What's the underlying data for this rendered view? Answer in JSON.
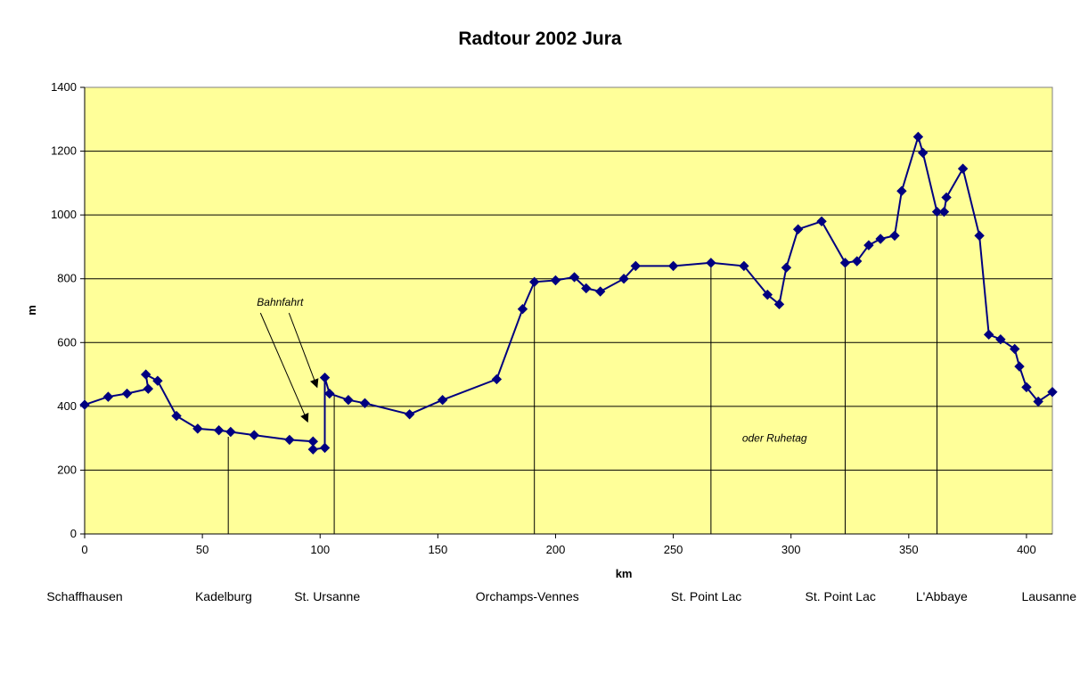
{
  "chart_data": {
    "type": "line",
    "title": "Radtour 2002 Jura",
    "xlabel": "km",
    "ylabel": "m",
    "xlim": [
      0,
      411
    ],
    "ylim": [
      0,
      1400
    ],
    "x_ticks": [
      0,
      50,
      100,
      150,
      200,
      250,
      300,
      350,
      400
    ],
    "y_ticks": [
      0,
      200,
      400,
      600,
      800,
      1000,
      1200,
      1400
    ],
    "grid": "horizontal",
    "plot_background": "#FFFF99",
    "line_color": "#000080",
    "marker": "diamond",
    "series": [
      {
        "x": [
          0,
          10,
          18,
          27,
          26,
          31,
          39,
          48,
          57,
          62,
          72,
          87,
          97,
          97,
          102,
          102,
          104,
          112,
          119,
          138,
          152,
          175,
          186,
          191,
          200,
          208,
          213,
          219,
          229,
          234,
          250,
          266,
          280,
          290,
          295,
          298,
          303,
          313,
          323,
          328,
          333,
          338,
          344,
          347,
          354,
          356,
          362,
          365,
          366,
          373,
          380,
          384,
          389,
          395,
          397,
          400,
          405,
          411
        ],
        "y": [
          405,
          430,
          440,
          455,
          500,
          480,
          370,
          330,
          325,
          320,
          310,
          295,
          290,
          265,
          270,
          490,
          440,
          420,
          410,
          375,
          420,
          485,
          705,
          790,
          795,
          805,
          770,
          760,
          800,
          840,
          840,
          850,
          840,
          750,
          720,
          835,
          955,
          980,
          850,
          855,
          905,
          925,
          935,
          1075,
          1245,
          1195,
          1010,
          1010,
          1055,
          1145,
          935,
          625,
          610,
          580,
          525,
          460,
          415,
          445
        ]
      }
    ],
    "stage_markers_km": [
      61,
      106,
      191,
      266,
      323,
      362
    ],
    "places": [
      {
        "label": "Schaffhausen",
        "km": 0
      },
      {
        "label": "Kadelburg",
        "km": 59
      },
      {
        "label": "St. Ursanne",
        "km": 103
      },
      {
        "label": "Orchamps-Vennes",
        "km": 188
      },
      {
        "label": "St. Point Lac",
        "km": 264
      },
      {
        "label": "St. Point Lac",
        "km": 321
      },
      {
        "label": "L'Abbaye",
        "km": 364
      },
      {
        "label": "Lausanne",
        "km": 411
      }
    ],
    "annotations": [
      {
        "text": "Bahnfahrt",
        "km": 83,
        "m": 715
      },
      {
        "text": "oder Ruhetag",
        "km": 293,
        "m": 300
      }
    ]
  }
}
